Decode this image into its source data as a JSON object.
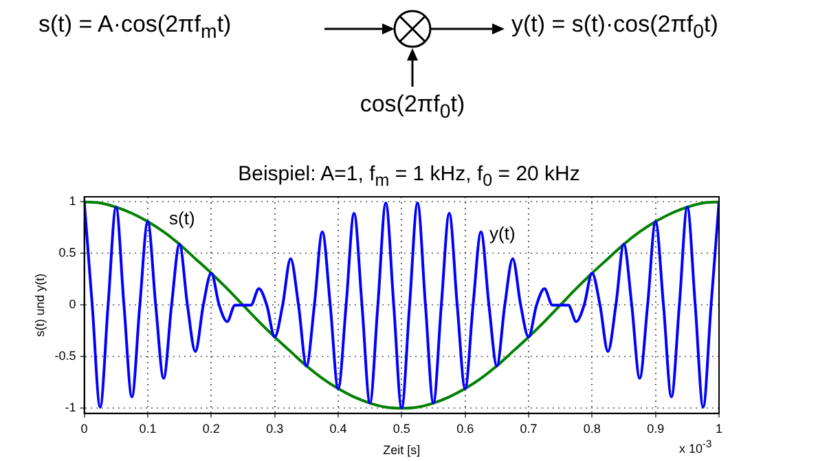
{
  "chart_data": {
    "type": "line",
    "title": "Beispiel:  A=1, f$_{m}$ = 1 kHz, f$_{0}$ = 20 kHz",
    "xlabel": "Zeit [s]",
    "ylabel": "s(t) und y(t)",
    "xlim": [
      0,
      1
    ],
    "xticks": [
      0,
      0.1,
      0.2,
      0.3,
      0.4,
      0.5,
      0.6,
      0.7,
      0.8,
      0.9,
      1
    ],
    "ylim": [
      -1.05,
      1.05
    ],
    "yticks": [
      -1,
      -0.5,
      0,
      0.5,
      1
    ],
    "grid": true,
    "legend": false,
    "marker": "none",
    "annotations": [
      "s(t) = A·cos(2πf$_{m}$t)",
      "y(t) = s(t)·cos(2πf$_{0}$t)",
      "cos(2πf$_{0}$t)",
      "x 10$^{-3}$",
      "s(t)",
      "y(t)"
    ],
    "series": [
      {
        "color": "#0000ff",
        "x": [
          0,
          0.0125,
          0.025,
          0.0375,
          0.05,
          0.0625,
          0.075,
          0.0875,
          0.1,
          0.1125,
          0.125,
          0.1375,
          0.15,
          0.1625,
          0.175,
          0.1875,
          0.2,
          0.2125,
          0.225,
          0.2375,
          0.25,
          0.2625,
          0.275,
          0.2875,
          0.3,
          0.3125,
          0.325,
          0.3375,
          0.35,
          0.3625,
          0.375,
          0.3875,
          0.4,
          0.4125,
          0.425,
          0.4375,
          0.45,
          0.4625,
          0.475,
          0.4875,
          0.5,
          0.5125,
          0.525,
          0.5375,
          0.55,
          0.5625,
          0.575,
          0.5875,
          0.6,
          0.6125,
          0.625,
          0.6375,
          0.65,
          0.6625,
          0.675,
          0.6875,
          0.7,
          0.7125,
          0.725,
          0.7375,
          0.75,
          0.7625,
          0.775,
          0.7875,
          0.8,
          0.8125,
          0.825,
          0.8375,
          0.85,
          0.8625,
          0.875,
          0.8875,
          0.9,
          0.9125,
          0.925,
          0.9375,
          0.95,
          0.9625,
          0.975,
          0.9875,
          1
        ],
        "values": [
          1,
          0,
          -0.99,
          0,
          0.95,
          0,
          -0.89,
          0,
          0.81,
          0,
          -0.71,
          0,
          0.59,
          0,
          -0.45,
          0,
          0.31,
          0,
          -0.16,
          0,
          0,
          0,
          0.16,
          0,
          -0.31,
          0,
          0.45,
          0,
          -0.59,
          0,
          0.71,
          0,
          -0.81,
          0,
          0.89,
          0,
          -0.95,
          0,
          0.99,
          0,
          -1,
          0,
          0.99,
          0,
          -0.95,
          0,
          0.89,
          0,
          -0.81,
          0,
          0.71,
          0,
          -0.59,
          0,
          0.45,
          0,
          -0.31,
          0,
          0.16,
          0,
          0,
          0,
          -0.16,
          0,
          0.31,
          0,
          -0.45,
          0,
          0.59,
          0,
          -0.71,
          0,
          0.81,
          0,
          -0.89,
          0,
          0.95,
          0,
          -0.99,
          0,
          1
        ]
      },
      {
        "color": "#008000",
        "x": [
          0,
          0.025,
          0.05,
          0.075,
          0.1,
          0.125,
          0.15,
          0.175,
          0.2,
          0.225,
          0.25,
          0.275,
          0.3,
          0.325,
          0.35,
          0.375,
          0.4,
          0.425,
          0.45,
          0.475,
          0.5,
          0.525,
          0.55,
          0.575,
          0.6,
          0.625,
          0.65,
          0.675,
          0.7,
          0.725,
          0.75,
          0.775,
          0.8,
          0.825,
          0.85,
          0.875,
          0.9,
          0.925,
          0.95,
          0.975,
          1
        ],
        "values": [
          1,
          0.99,
          0.95,
          0.89,
          0.81,
          0.71,
          0.59,
          0.45,
          0.31,
          0.16,
          0,
          -0.16,
          -0.31,
          -0.45,
          -0.59,
          -0.71,
          -0.81,
          -0.89,
          -0.95,
          -0.99,
          -1,
          -0.99,
          -0.95,
          -0.89,
          -0.81,
          -0.71,
          -0.59,
          -0.45,
          -0.31,
          -0.16,
          0,
          0.16,
          0.31,
          0.45,
          0.59,
          0.71,
          0.81,
          0.89,
          0.95,
          0.99,
          1
        ]
      }
    ]
  }
}
